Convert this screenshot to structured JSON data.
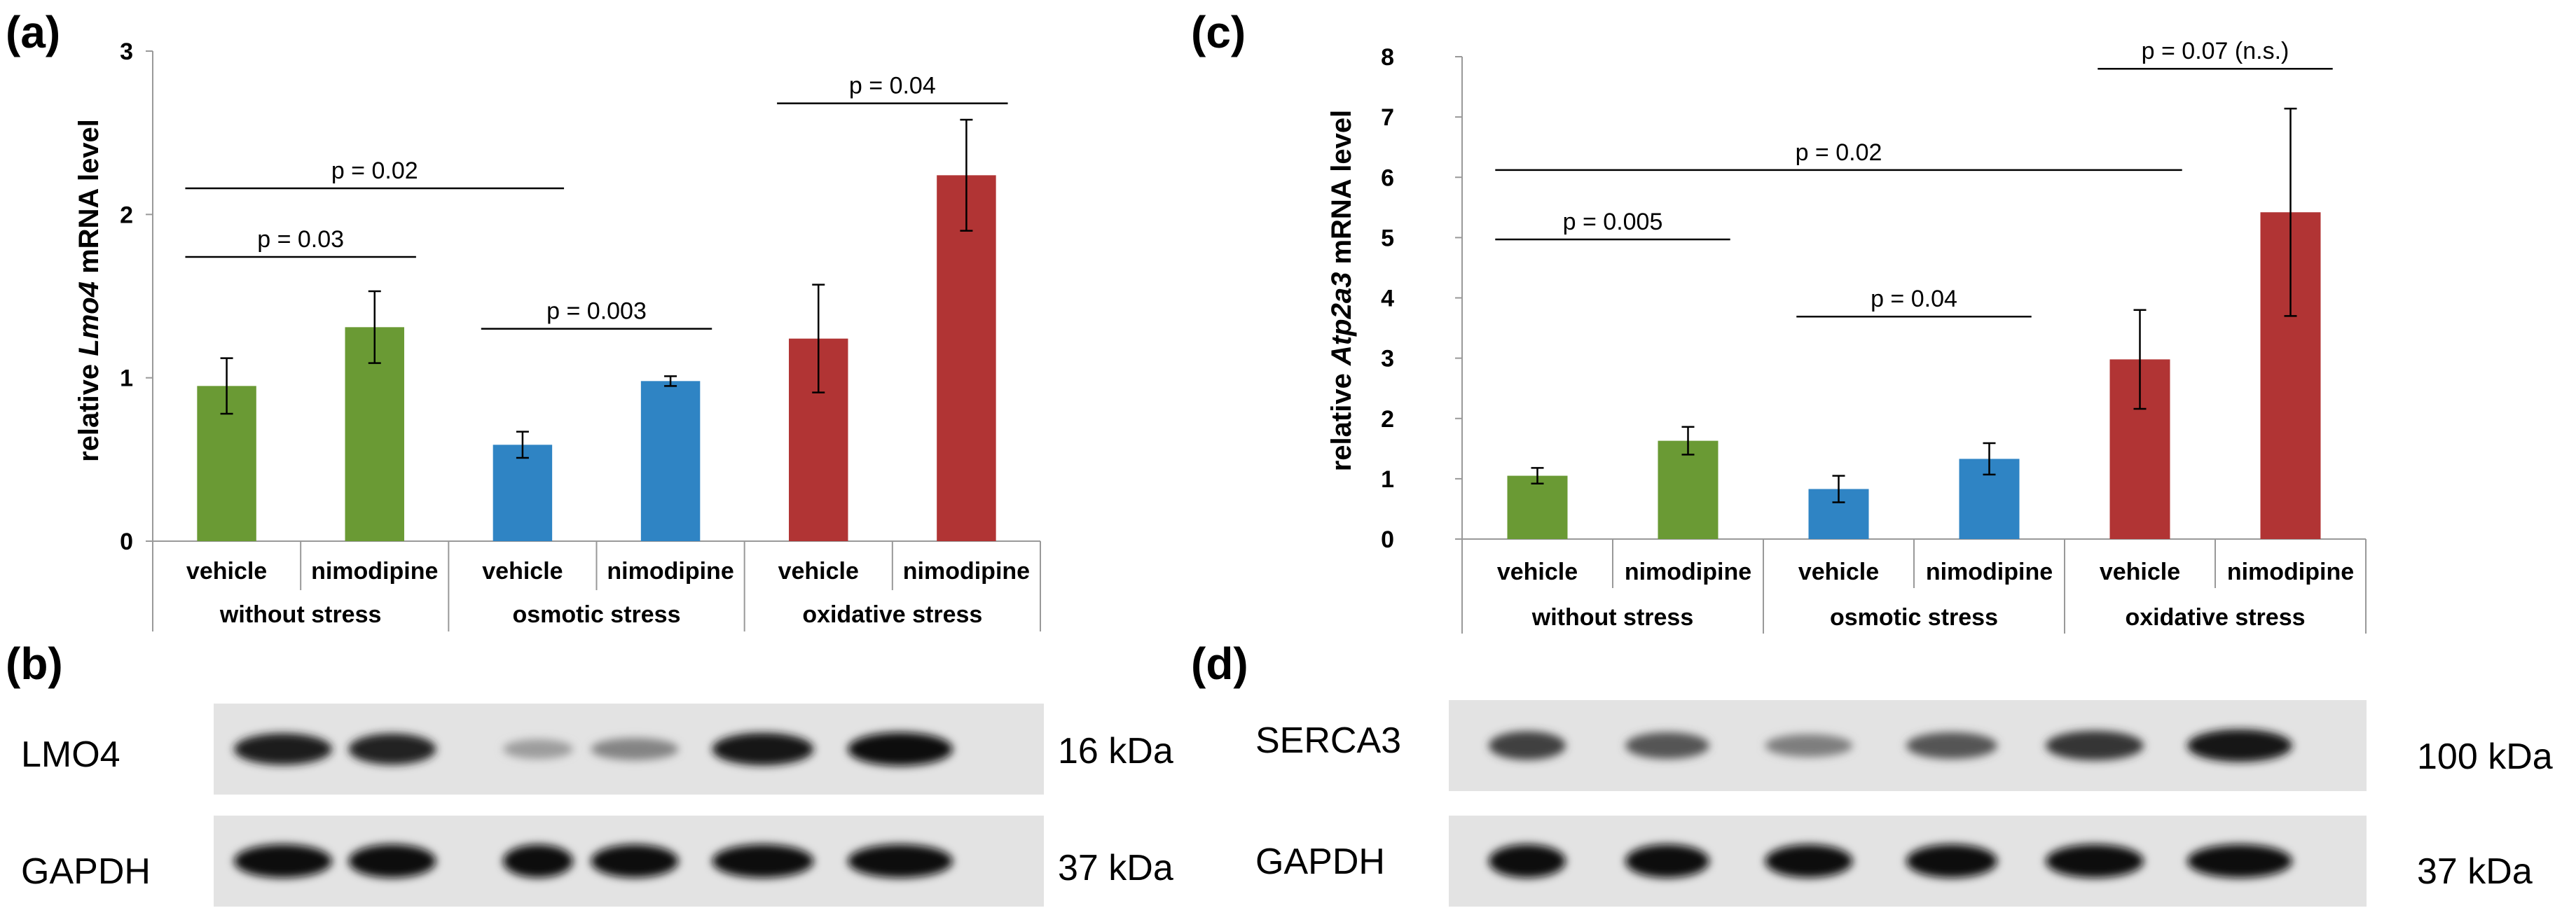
{
  "panels": {
    "a": "(a)",
    "b": "(b)",
    "c": "(c)",
    "d": "(d)"
  },
  "colors": {
    "without_stress": "#6a9a34",
    "osmotic_stress": "#2f84c4",
    "oxidative_stress": "#b13434",
    "axis": "#999999",
    "bracket": "#000000"
  },
  "chart_data": [
    {
      "id": "a",
      "type": "bar",
      "ylabel_prefix": "relative ",
      "ylabel_gene": "Lmo4",
      "ylabel_suffix": " mRNA  level",
      "ylim": [
        0,
        3
      ],
      "yticks": [
        "0",
        "1",
        "2",
        "3"
      ],
      "categories": [
        "vehicle",
        "nimodipine",
        "vehicle",
        "nimodipine",
        "vehicle",
        "nimodipine"
      ],
      "groups": [
        "without stress",
        "osmotic stress",
        "oxidative stress"
      ],
      "values": [
        0.95,
        1.31,
        0.59,
        0.98,
        1.24,
        2.24
      ],
      "errors": [
        0.17,
        0.22,
        0.08,
        0.03,
        0.33,
        0.34
      ],
      "bar_groups": [
        0,
        0,
        1,
        1,
        2,
        2
      ],
      "comparisons": [
        {
          "from": 0,
          "to": 1,
          "label": "p = 0.03",
          "y": 1.74
        },
        {
          "from": 0,
          "to": 2,
          "label": "p = 0.02",
          "y": 2.16
        },
        {
          "from": 2,
          "to": 3,
          "label": "p = 0.003",
          "y": 1.3
        },
        {
          "from": 4,
          "to": 5,
          "label": "p = 0.04",
          "y": 2.68
        }
      ]
    },
    {
      "id": "c",
      "type": "bar",
      "ylabel_prefix": "relative ",
      "ylabel_gene": "Atp2a3",
      "ylabel_suffix": " mRNA  level",
      "ylim": [
        0,
        8
      ],
      "yticks": [
        "0",
        "1",
        "2",
        "3",
        "4",
        "5",
        "6",
        "7",
        "8"
      ],
      "categories": [
        "vehicle",
        "nimodipine",
        "vehicle",
        "nimodipine",
        "vehicle",
        "nimodipine"
      ],
      "groups": [
        "without stress",
        "osmotic stress",
        "oxidative stress"
      ],
      "values": [
        1.05,
        1.63,
        0.83,
        1.33,
        2.98,
        5.42
      ],
      "errors": [
        0.13,
        0.23,
        0.22,
        0.26,
        0.82,
        1.72
      ],
      "bar_groups": [
        0,
        0,
        1,
        1,
        2,
        2
      ],
      "comparisons": [
        {
          "from": 0,
          "to": 1,
          "label": "p = 0.005",
          "y": 4.97
        },
        {
          "from": 0,
          "to": 4,
          "label": "p = 0.02",
          "y": 6.12
        },
        {
          "from": 2,
          "to": 3,
          "label": "p = 0.04",
          "y": 3.69
        },
        {
          "from": 4,
          "to": 5,
          "label": "p = 0.07 (n.s.)",
          "y": 7.8
        }
      ]
    }
  ],
  "blots": {
    "b": {
      "rows": [
        {
          "label": "LMO4",
          "size": "16 kDa",
          "intensities": [
            0.9,
            0.88,
            0.3,
            0.42,
            0.95,
            1.0
          ]
        },
        {
          "label": "GAPDH",
          "size": "37 kDa",
          "intensities": [
            1.0,
            1.0,
            0.98,
            0.98,
            1.0,
            1.0
          ]
        }
      ]
    },
    "d": {
      "rows": [
        {
          "label": "SERCA3",
          "size": "100 kDa",
          "intensities": [
            0.75,
            0.65,
            0.45,
            0.65,
            0.8,
            0.95
          ]
        },
        {
          "label": "GAPDH",
          "size": "37 kDa",
          "intensities": [
            1.0,
            1.0,
            0.98,
            1.0,
            1.0,
            1.0
          ]
        }
      ]
    }
  }
}
